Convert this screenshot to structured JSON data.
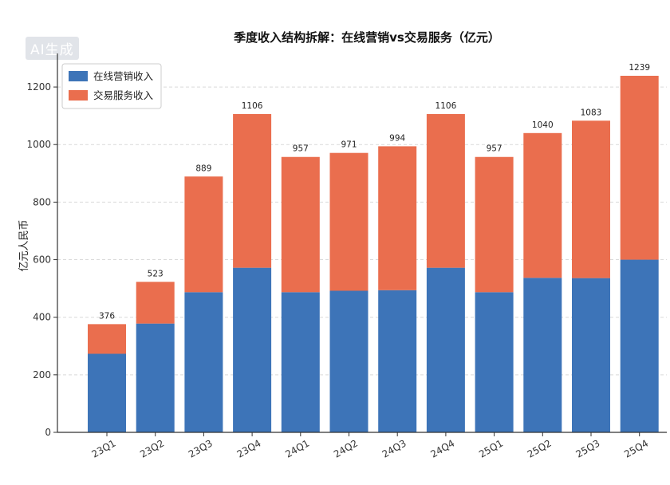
{
  "watermark": "AI生成",
  "colors": {
    "online": "#3d74b8",
    "trade": "#ea6e4e",
    "grid": "#d9d9d9",
    "axis": "#333333"
  },
  "chart_data": {
    "type": "bar",
    "stacked": true,
    "title": "季度收入结构拆解：在线营销vs交易服务（亿元）",
    "xlabel": "",
    "ylabel": "亿元人民币",
    "ylim": [
      0,
      1300
    ],
    "yticks": [
      0,
      200,
      400,
      600,
      800,
      1000,
      1200
    ],
    "grid": true,
    "legend_position": "top-left",
    "categories": [
      "23Q1",
      "23Q2",
      "23Q3",
      "23Q4",
      "24Q1",
      "24Q2",
      "24Q3",
      "24Q4",
      "25Q1",
      "25Q2",
      "25Q3",
      "25Q4"
    ],
    "series": [
      {
        "name": "在线营销收入",
        "values": [
          273,
          378,
          487,
          572,
          487,
          492,
          494,
          572,
          487,
          537,
          536,
          600
        ]
      },
      {
        "name": "交易服务收入",
        "values": [
          103,
          145,
          402,
          534,
          470,
          479,
          500,
          534,
          470,
          503,
          547,
          639
        ]
      }
    ],
    "totals": [
      376,
      523,
      889,
      1106,
      957,
      971,
      994,
      1106,
      957,
      1040,
      1083,
      1239
    ]
  }
}
